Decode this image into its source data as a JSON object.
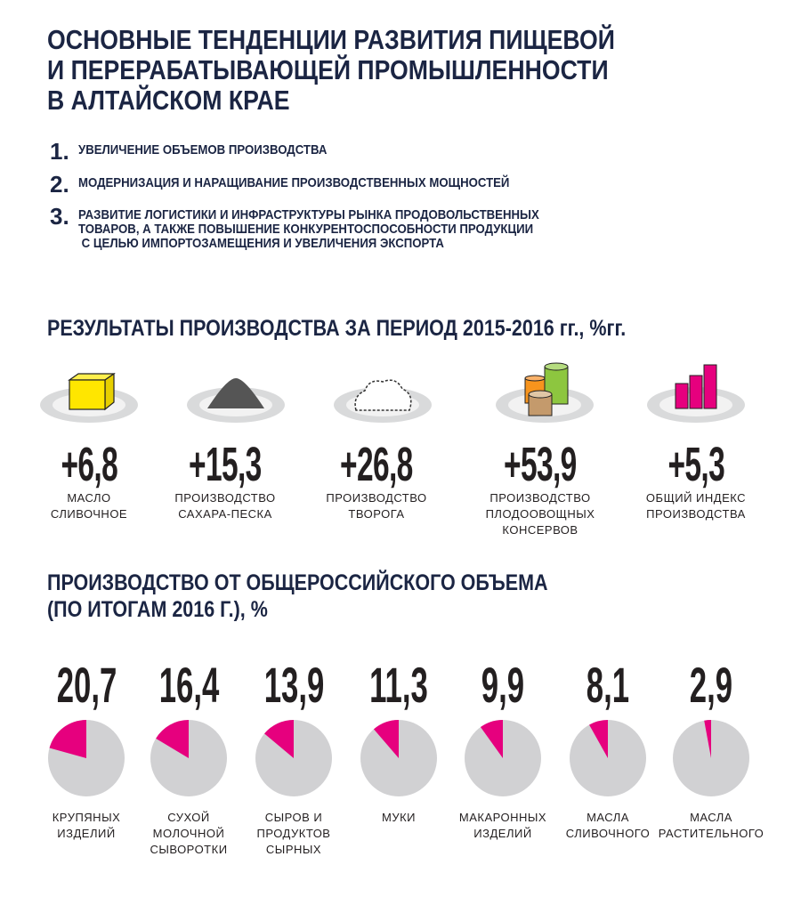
{
  "title": [
    "ОСНОВНЫЕ ТЕНДЕНЦИИ РАЗВИТИЯ ПИЩЕВОЙ",
    "И ПЕРЕРАБАТЫВАЮЩЕЙ ПРОМЫШЛЕННОСТИ",
    "В АЛТАЙСКОМ КРАЕ"
  ],
  "trends": [
    {
      "num": "1.",
      "lines": [
        "УВЕЛИЧЕНИЕ ОБЪЕМОВ ПРОИЗВОДСТВА"
      ]
    },
    {
      "num": "2.",
      "lines": [
        "МОДЕРНИЗАЦИЯ И НАРАЩИВАНИЕ ПРОИЗВОДСТВЕННЫХ МОЩНОСТЕЙ"
      ]
    },
    {
      "num": "3.",
      "lines": [
        "РАЗВИТИЕ ЛОГИСТИКИ И ИНФРАСТРУКТУРЫ РЫНКА ПРОДОВОЛЬСТВЕННЫХ",
        "ТОВАРОВ, А ТАКЖЕ ПОВЫШЕНИЕ КОНКУРЕНТОСПОСОБНОСТИ ПРОДУКЦИИ",
        "С ЦЕЛЬЮ ИМПОРТОЗАМЕЩЕНИЯ И УВЕЛИЧЕНИЯ ЭКСПОРТА"
      ]
    }
  ],
  "colors": {
    "title": "#1b2543",
    "accent": "#e6007e",
    "pie_rest": "#d1d1d3",
    "butter": "#ffe600",
    "can_orange": "#f7941d",
    "can_green": "#8dc63f",
    "can_brown": "#c49a6c"
  },
  "chart_data": [
    {
      "type": "table",
      "title": "РЕЗУЛЬТАТЫ ПРОИЗВОДСТВА ЗА ПЕРИОД 2015-2016 гг., %гг.",
      "items": [
        {
          "icon": "butter-icon",
          "value": "+6,8",
          "label": [
            "МАСЛО",
            "СЛИВОЧНОЕ"
          ]
        },
        {
          "icon": "sugar-icon",
          "value": "+15,3",
          "label": [
            "ПРОИЗВОДСТВО",
            "САХАРА-ПЕСКА"
          ]
        },
        {
          "icon": "cottage-cheese-icon",
          "value": "+26,8",
          "label": [
            "ПРОИЗВОДСТВО",
            "ТВОРОГА"
          ]
        },
        {
          "icon": "cans-icon",
          "value": "+53,9",
          "label": [
            "ПРОИЗВОДСТВО",
            "ПЛОДООВОЩНЫХ",
            "КОНСЕРВОВ"
          ]
        },
        {
          "icon": "bar-chart-icon",
          "value": "+5,3",
          "label": [
            "ОБЩИЙ ИНДЕКС",
            "ПРОИЗВОДСТВА"
          ]
        }
      ]
    },
    {
      "type": "pie",
      "title": [
        "ПРОИЗВОДСТВО ОТ ОБЩЕРОССИЙСКОГО ОБЪЕМА",
        "(ПО ИТОГАМ 2016 Г.), %"
      ],
      "items": [
        {
          "value": 20.7,
          "display": "20,7",
          "label": [
            "КРУПЯНЫХ",
            "ИЗДЕЛИЙ"
          ]
        },
        {
          "value": 16.4,
          "display": "16,4",
          "label": [
            "СУХОЙ",
            "МОЛОЧНОЙ",
            "СЫВОРОТКИ"
          ]
        },
        {
          "value": 13.9,
          "display": "13,9",
          "label": [
            "СЫРОВ И",
            "ПРОДУКТОВ",
            "СЫРНЫХ"
          ]
        },
        {
          "value": 11.3,
          "display": "11,3",
          "label": [
            "МУКИ"
          ]
        },
        {
          "value": 9.9,
          "display": "9,9",
          "label": [
            "МАКАРОННЫХ",
            "ИЗДЕЛИЙ"
          ]
        },
        {
          "value": 8.1,
          "display": "8,1",
          "label": [
            "МАСЛА",
            "СЛИВОЧНОГО"
          ]
        },
        {
          "value": 2.9,
          "display": "2,9",
          "label": [
            "МАСЛА",
            "РАСТИТЕЛЬНОГО"
          ]
        }
      ]
    }
  ]
}
